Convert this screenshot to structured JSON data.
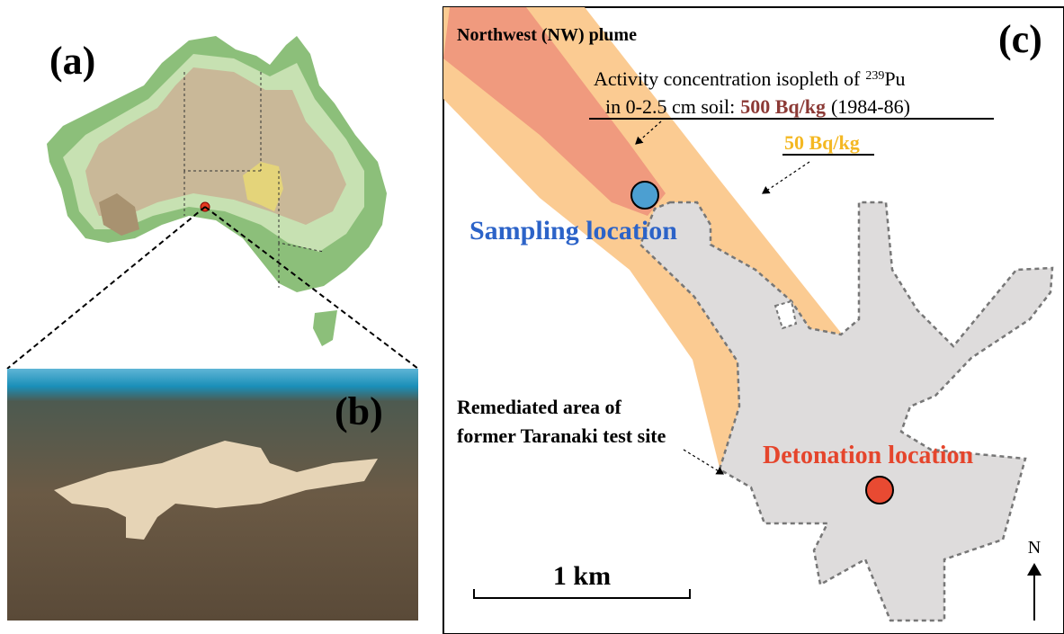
{
  "panels": {
    "a": {
      "label": "(a)"
    },
    "b": {
      "label": "(b)"
    },
    "c": {
      "label": "(c)",
      "plume_label": "Northwest (NW) plume",
      "isopleth": {
        "line1": "Activity concentration isopleth of",
        "isotope_mass": "239",
        "isotope": "Pu",
        "line2": "in 0-2.5 cm soil:",
        "high_value": "500 Bq/kg",
        "period": "(1984-86)",
        "low_value": "50 Bq/kg"
      },
      "sampling_label": "Sampling location",
      "remediated_label": [
        "Remediated area of",
        "former Taranaki test site"
      ],
      "detonation_label": "Detonation location",
      "scale_bar": "1 km",
      "north": "N"
    }
  }
}
